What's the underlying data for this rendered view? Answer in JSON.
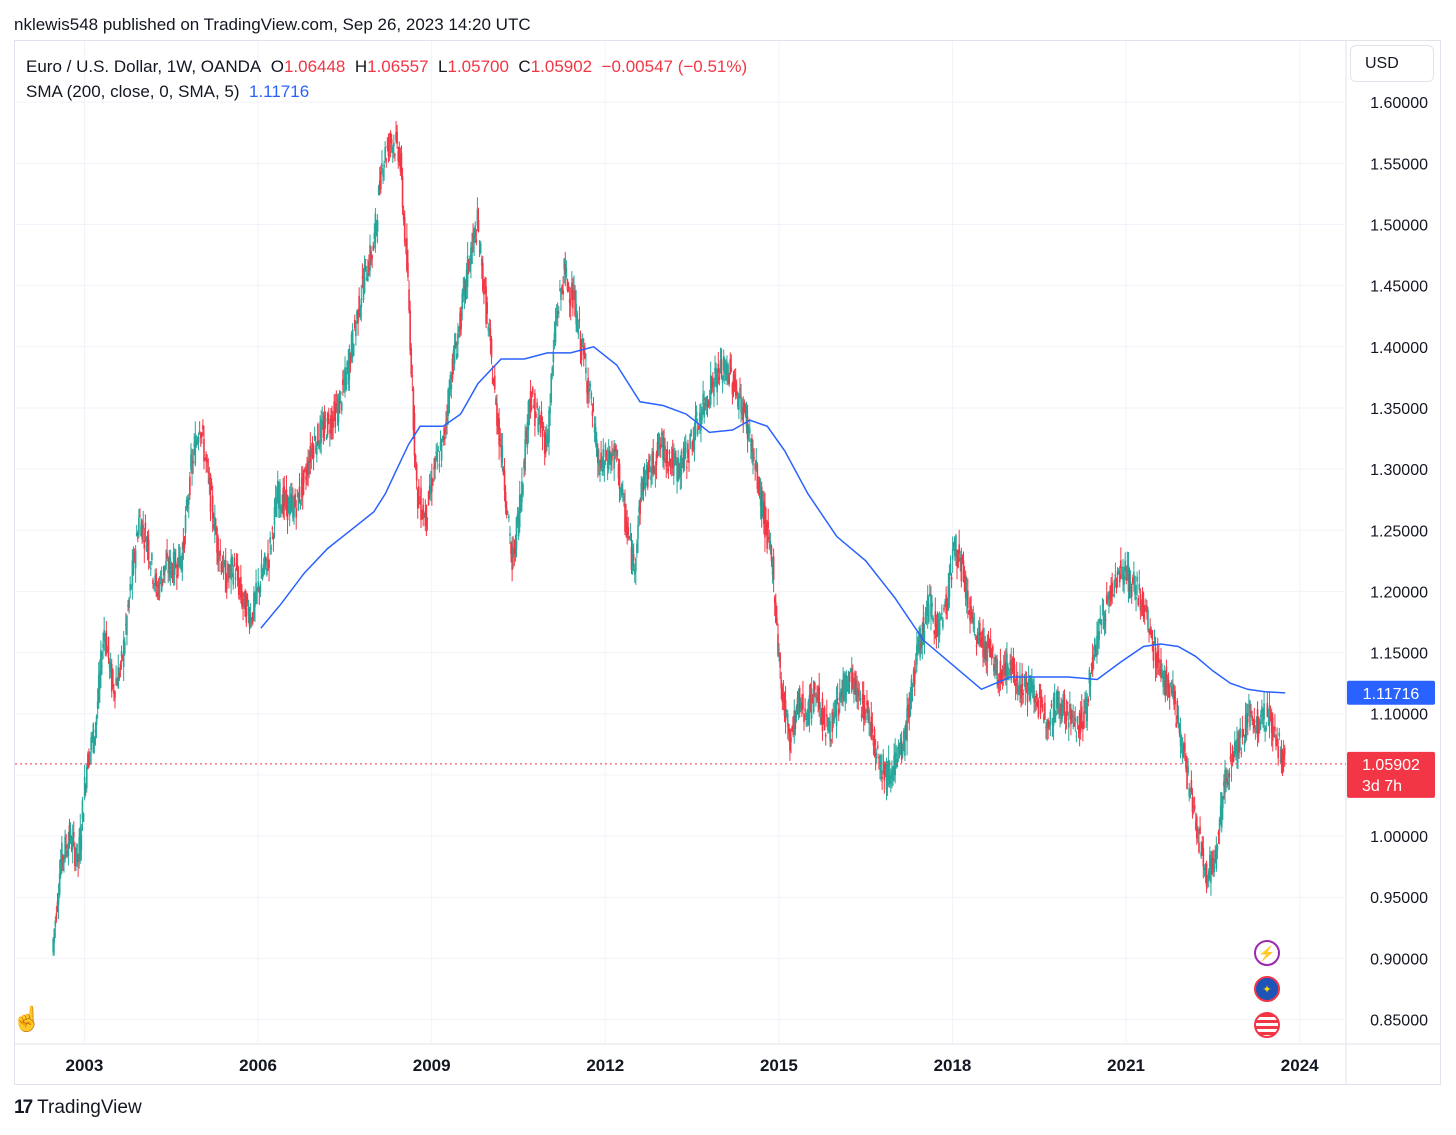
{
  "header": {
    "published": "nklewis548 published on TradingView.com, Sep 26, 2023 14:20 UTC"
  },
  "legend": {
    "symbol": "Euro / U.S. Dollar, 1W, OANDA",
    "o_label": "O",
    "o_value": "1.06448",
    "h_label": "H",
    "h_value": "1.06557",
    "l_label": "L",
    "l_value": "1.05700",
    "c_label": "C",
    "c_value": "1.05902",
    "change": "−0.00547 (−0.51%)",
    "sma_label": "SMA (200, close, 0, SMA, 5)",
    "sma_value": "1.11716"
  },
  "toolbar": {
    "currency": "USD"
  },
  "footer": {
    "brand": "TradingView"
  },
  "colors": {
    "up": "#26a69a",
    "down": "#f23645",
    "sma": "#2962ff",
    "grid": "#f0f3fa"
  },
  "chart_data": {
    "type": "line",
    "interval": "1W",
    "y_ticks": [
      "0.85000",
      "0.90000",
      "0.95000",
      "1.00000",
      "1.05000",
      "1.10000",
      "1.15000",
      "1.20000",
      "1.25000",
      "1.30000",
      "1.35000",
      "1.40000",
      "1.45000",
      "1.50000",
      "1.55000",
      "1.60000"
    ],
    "x_ticks": [
      "2003",
      "2006",
      "2009",
      "2012",
      "2015",
      "2018",
      "2021",
      "2024"
    ],
    "ylim": [
      0.83,
      1.65
    ],
    "xlim": [
      2001.8,
      2024.8
    ],
    "price": {
      "x": [
        2002.45,
        2002.6,
        2002.75,
        2002.9,
        2003.05,
        2003.2,
        2003.35,
        2003.5,
        2003.65,
        2003.8,
        2003.95,
        2004.1,
        2004.25,
        2004.4,
        2004.55,
        2004.7,
        2004.85,
        2005.0,
        2005.15,
        2005.3,
        2005.45,
        2005.6,
        2005.75,
        2005.9,
        2006.05,
        2006.2,
        2006.35,
        2006.5,
        2006.65,
        2006.8,
        2006.95,
        2007.1,
        2007.25,
        2007.4,
        2007.55,
        2007.7,
        2007.85,
        2008.0,
        2008.15,
        2008.3,
        2008.45,
        2008.6,
        2008.75,
        2008.9,
        2009.05,
        2009.2,
        2009.35,
        2009.5,
        2009.65,
        2009.8,
        2009.95,
        2010.1,
        2010.25,
        2010.4,
        2010.55,
        2010.7,
        2010.85,
        2011.0,
        2011.15,
        2011.3,
        2011.45,
        2011.6,
        2011.75,
        2011.9,
        2012.05,
        2012.2,
        2012.35,
        2012.5,
        2012.65,
        2012.8,
        2012.95,
        2013.1,
        2013.25,
        2013.4,
        2013.55,
        2013.7,
        2013.85,
        2014.0,
        2014.15,
        2014.3,
        2014.45,
        2014.6,
        2014.75,
        2014.9,
        2015.05,
        2015.2,
        2015.35,
        2015.5,
        2015.65,
        2015.8,
        2015.95,
        2016.1,
        2016.25,
        2016.4,
        2016.55,
        2016.7,
        2016.85,
        2017.0,
        2017.15,
        2017.3,
        2017.45,
        2017.6,
        2017.75,
        2017.9,
        2018.05,
        2018.2,
        2018.35,
        2018.5,
        2018.65,
        2018.8,
        2018.95,
        2019.1,
        2019.25,
        2019.4,
        2019.55,
        2019.7,
        2019.85,
        2020.0,
        2020.15,
        2020.3,
        2020.45,
        2020.6,
        2020.75,
        2020.9,
        2021.05,
        2021.2,
        2021.35,
        2021.5,
        2021.65,
        2021.8,
        2021.95,
        2022.1,
        2022.25,
        2022.4,
        2022.55,
        2022.7,
        2022.85,
        2023.0,
        2023.15,
        2023.3,
        2023.45,
        2023.6,
        2023.75
      ],
      "y": [
        0.905,
        0.98,
        1.0,
        0.98,
        1.06,
        1.09,
        1.17,
        1.12,
        1.14,
        1.2,
        1.26,
        1.24,
        1.2,
        1.22,
        1.22,
        1.23,
        1.3,
        1.34,
        1.29,
        1.24,
        1.21,
        1.22,
        1.19,
        1.18,
        1.21,
        1.23,
        1.28,
        1.27,
        1.27,
        1.29,
        1.32,
        1.33,
        1.34,
        1.35,
        1.38,
        1.42,
        1.46,
        1.48,
        1.55,
        1.57,
        1.56,
        1.45,
        1.28,
        1.26,
        1.3,
        1.32,
        1.38,
        1.42,
        1.47,
        1.5,
        1.43,
        1.36,
        1.3,
        1.22,
        1.28,
        1.36,
        1.34,
        1.32,
        1.42,
        1.46,
        1.44,
        1.4,
        1.36,
        1.3,
        1.31,
        1.31,
        1.26,
        1.22,
        1.29,
        1.3,
        1.32,
        1.31,
        1.3,
        1.31,
        1.33,
        1.35,
        1.37,
        1.38,
        1.38,
        1.36,
        1.34,
        1.3,
        1.26,
        1.22,
        1.12,
        1.08,
        1.11,
        1.1,
        1.12,
        1.09,
        1.09,
        1.12,
        1.13,
        1.11,
        1.1,
        1.07,
        1.05,
        1.06,
        1.07,
        1.12,
        1.16,
        1.19,
        1.17,
        1.19,
        1.24,
        1.21,
        1.17,
        1.16,
        1.15,
        1.13,
        1.14,
        1.13,
        1.12,
        1.12,
        1.1,
        1.1,
        1.11,
        1.1,
        1.09,
        1.1,
        1.15,
        1.18,
        1.2,
        1.22,
        1.21,
        1.2,
        1.18,
        1.15,
        1.13,
        1.12,
        1.08,
        1.04,
        1.0,
        0.97,
        0.98,
        1.04,
        1.07,
        1.08,
        1.1,
        1.09,
        1.1,
        1.08,
        1.059
      ]
    },
    "sma": {
      "name": "SMA (200, close, 0, SMA, 5)",
      "x": [
        2006.05,
        2006.4,
        2006.8,
        2007.2,
        2007.6,
        2008.0,
        2008.2,
        2008.4,
        2008.6,
        2008.8,
        2009.2,
        2009.5,
        2009.8,
        2010.2,
        2010.6,
        2011.0,
        2011.4,
        2011.8,
        2012.2,
        2012.6,
        2013.0,
        2013.4,
        2013.8,
        2014.2,
        2014.5,
        2014.8,
        2015.1,
        2015.5,
        2016.0,
        2016.5,
        2017.0,
        2017.5,
        2018.0,
        2018.5,
        2019.0,
        2019.5,
        2020.0,
        2020.5,
        2020.9,
        2021.3,
        2021.6,
        2021.9,
        2022.2,
        2022.5,
        2022.8,
        2023.1,
        2023.4,
        2023.75
      ],
      "y": [
        1.17,
        1.19,
        1.215,
        1.235,
        1.25,
        1.265,
        1.28,
        1.3,
        1.32,
        1.335,
        1.335,
        1.345,
        1.37,
        1.39,
        1.39,
        1.395,
        1.395,
        1.4,
        1.385,
        1.355,
        1.352,
        1.345,
        1.33,
        1.332,
        1.34,
        1.335,
        1.315,
        1.28,
        1.245,
        1.225,
        1.195,
        1.16,
        1.14,
        1.12,
        1.13,
        1.13,
        1.13,
        1.128,
        1.142,
        1.155,
        1.157,
        1.155,
        1.147,
        1.135,
        1.125,
        1.12,
        1.118,
        1.117
      ]
    },
    "last_price": {
      "label": "1.05902",
      "countdown": "3d 7h",
      "value": 1.05902
    },
    "sma_last": {
      "label": "1.11716",
      "value": 1.11716
    }
  }
}
